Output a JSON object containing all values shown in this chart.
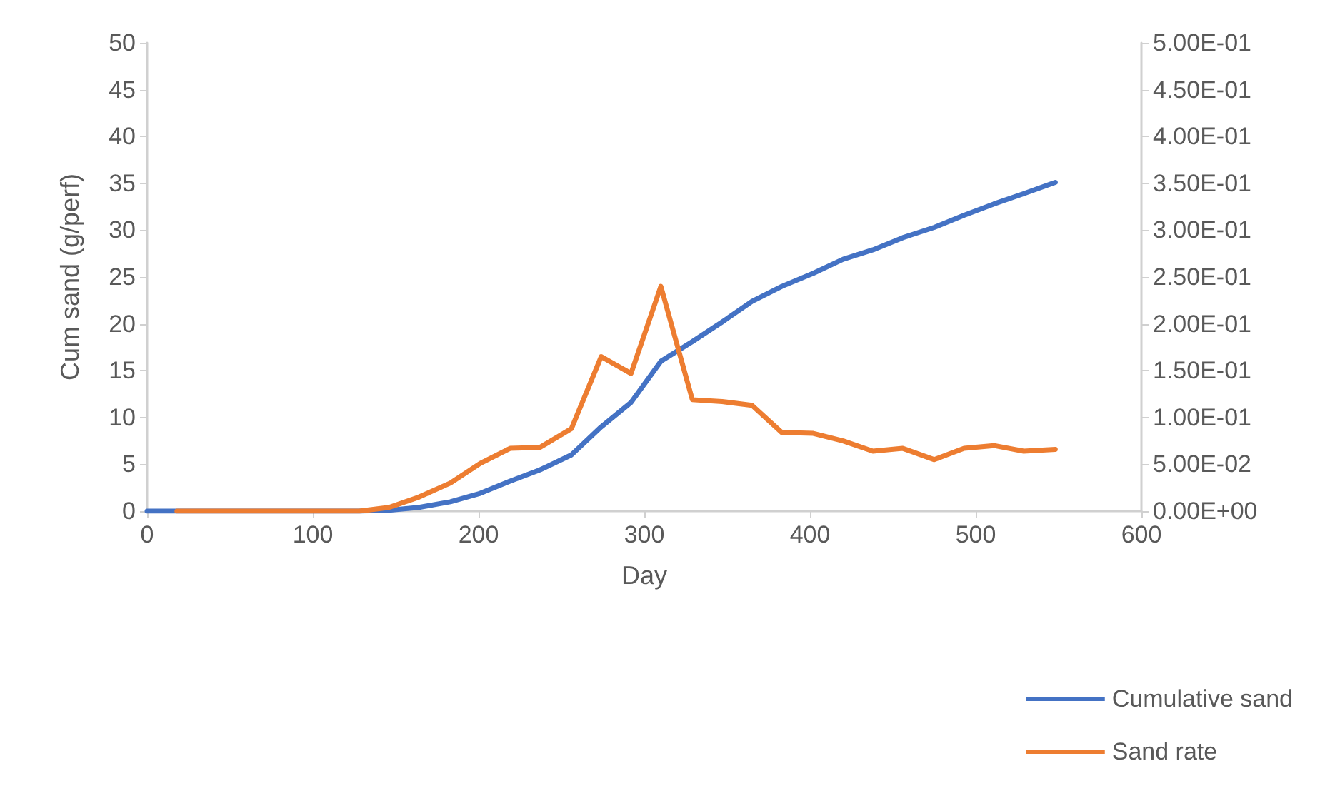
{
  "chart_data": {
    "type": "line",
    "xlabel": "Day",
    "ylabel": "Cum sand (g/perf)",
    "xlim": [
      0,
      600
    ],
    "xticks": [
      0,
      100,
      200,
      300,
      400,
      500,
      600
    ],
    "ylim": [
      0,
      50
    ],
    "yticks": [
      0,
      5,
      10,
      15,
      20,
      25,
      30,
      35,
      40,
      45,
      50
    ],
    "y2lim": [
      0,
      0.5
    ],
    "y2ticks": [
      {
        "value": 0,
        "label": "0.00E+00"
      },
      {
        "value": 0.05,
        "label": "5.00E-02"
      },
      {
        "value": 0.1,
        "label": "1.00E-01"
      },
      {
        "value": 0.15,
        "label": "1.50E-01"
      },
      {
        "value": 0.2,
        "label": "2.00E-01"
      },
      {
        "value": 0.25,
        "label": "2.50E-01"
      },
      {
        "value": 0.3,
        "label": "3.00E-01"
      },
      {
        "value": 0.35,
        "label": "3.50E-01"
      },
      {
        "value": 0.4,
        "label": "4.00E-01"
      },
      {
        "value": 0.45,
        "label": "4.50E-01"
      },
      {
        "value": 0.5,
        "label": "5.00E-01"
      }
    ],
    "grid": false,
    "legend": "bottom right",
    "marker": "none",
    "line_style": "solid",
    "series": [
      {
        "name": "Cumulative sand",
        "color": "#4472c4",
        "x": [
          0,
          18,
          36,
          55,
          73,
          91,
          110,
          128,
          146,
          164,
          183,
          201,
          219,
          237,
          256,
          274,
          292,
          310,
          329,
          347,
          365,
          383,
          402,
          420,
          438,
          456,
          475,
          493,
          511,
          529,
          548
        ],
        "values": [
          0,
          0,
          0,
          0,
          0,
          0,
          0,
          0,
          0.1,
          0.4,
          1.0,
          1.9,
          3.2,
          4.4,
          6.0,
          9.0,
          11.6,
          16.0,
          18.1,
          20.2,
          22.4,
          24.0,
          25.4,
          26.9,
          27.9,
          29.2,
          30.3,
          31.6,
          32.8,
          33.9,
          35.1
        ]
      },
      {
        "name": "Sand rate",
        "color": "#ed7d31",
        "axis": "y2",
        "x": [
          18,
          36,
          55,
          73,
          91,
          110,
          128,
          146,
          164,
          183,
          201,
          219,
          237,
          256,
          274,
          292,
          310,
          329,
          347,
          365,
          383,
          402,
          420,
          438,
          456,
          475,
          493,
          511,
          529,
          548
        ],
        "values": [
          0,
          0,
          0,
          0,
          0,
          0,
          0,
          0.004,
          0.015,
          0.03,
          0.051,
          0.067,
          0.068,
          0.088,
          0.165,
          0.147,
          0.24,
          0.119,
          0.117,
          0.113,
          0.084,
          0.083,
          0.075,
          0.064,
          0.067,
          0.055,
          0.067,
          0.07,
          0.064,
          0.066
        ]
      }
    ]
  }
}
